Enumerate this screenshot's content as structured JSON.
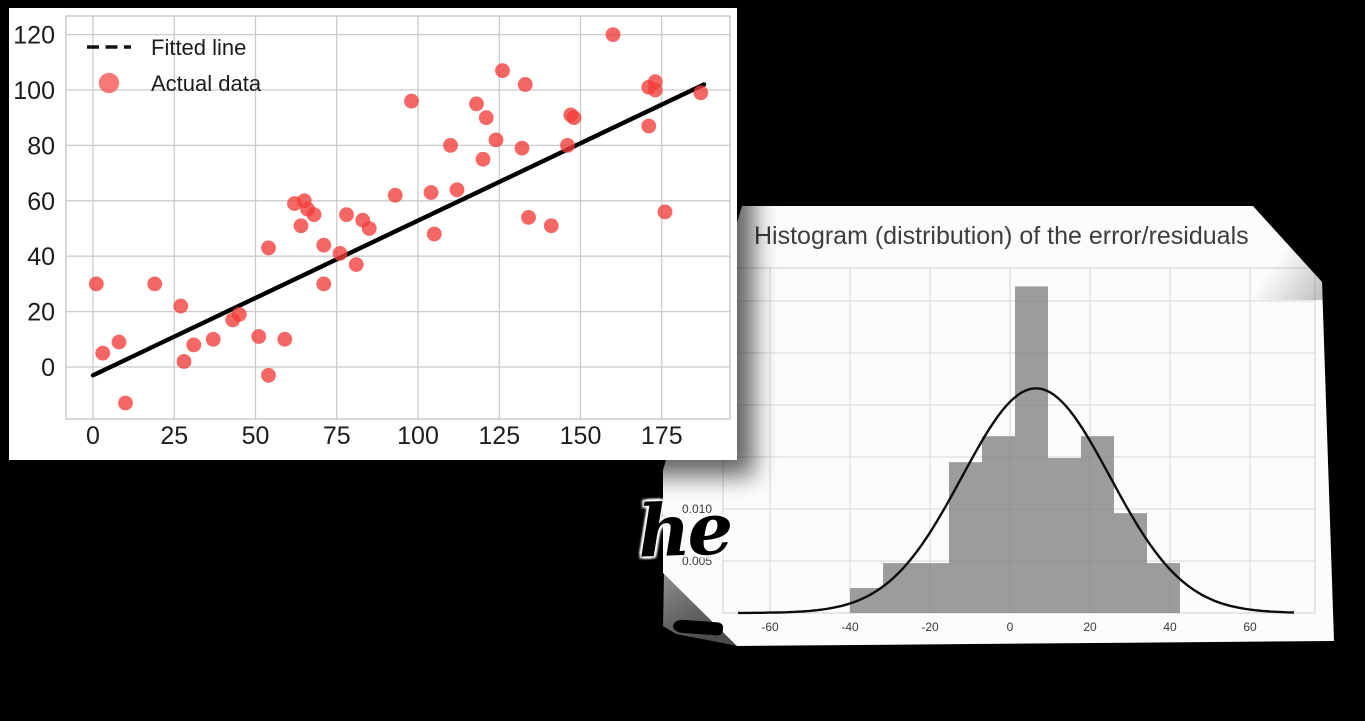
{
  "window": {
    "background_color": "#000000"
  },
  "scatter_panel": {
    "panel_color": "#ffffff",
    "legend": [
      {
        "label": "Fitted line",
        "marker": "dashed-line",
        "color": "#000000"
      },
      {
        "label": "Actual data",
        "marker": "dot",
        "color": "#f4625f"
      }
    ]
  },
  "note_panel": {
    "title": "Histogram (distribution) of the error/residuals",
    "paper_color": "#fcfcfc"
  },
  "overlay_text": {
    "script_fragment": "he"
  },
  "chart_data": [
    {
      "type": "scatter",
      "title": "",
      "legend": [
        "Fitted line",
        "Actual data"
      ],
      "x_ticks": [
        0,
        25,
        50,
        75,
        100,
        125,
        150,
        175
      ],
      "y_ticks": [
        0,
        20,
        40,
        60,
        80,
        100,
        120
      ],
      "xlim": [
        -8,
        196
      ],
      "ylim": [
        -19,
        127
      ],
      "grid": true,
      "point_color": "#f23c38",
      "line_color": "#000000",
      "points": [
        [
          1,
          30
        ],
        [
          3,
          5
        ],
        [
          8,
          9
        ],
        [
          10,
          -13
        ],
        [
          19,
          30
        ],
        [
          27,
          22
        ],
        [
          28,
          2
        ],
        [
          31,
          8
        ],
        [
          37,
          10
        ],
        [
          43,
          17
        ],
        [
          45,
          19
        ],
        [
          51,
          11
        ],
        [
          54,
          -3
        ],
        [
          54,
          43
        ],
        [
          59,
          10
        ],
        [
          62,
          59
        ],
        [
          64,
          51
        ],
        [
          65,
          60
        ],
        [
          66,
          57
        ],
        [
          68,
          55
        ],
        [
          71,
          44
        ],
        [
          71,
          30
        ],
        [
          76,
          41
        ],
        [
          78,
          55
        ],
        [
          81,
          37
        ],
        [
          83,
          53
        ],
        [
          85,
          50
        ],
        [
          93,
          62
        ],
        [
          98,
          96
        ],
        [
          104,
          63
        ],
        [
          105,
          48
        ],
        [
          110,
          80
        ],
        [
          112,
          64
        ],
        [
          118,
          95
        ],
        [
          120,
          75
        ],
        [
          121,
          90
        ],
        [
          124,
          82
        ],
        [
          126,
          107
        ],
        [
          132,
          79
        ],
        [
          133,
          102
        ],
        [
          134,
          54
        ],
        [
          141,
          51
        ],
        [
          146,
          80
        ],
        [
          147,
          91
        ],
        [
          148,
          90
        ],
        [
          160,
          120
        ],
        [
          171,
          87
        ],
        [
          171,
          101
        ],
        [
          173,
          103
        ],
        [
          173,
          100
        ],
        [
          176,
          56
        ],
        [
          187,
          99
        ]
      ],
      "fitted_line": {
        "x0": 0,
        "y0": -3,
        "x1": 188,
        "y1": 102
      }
    },
    {
      "type": "histogram",
      "title": "Histogram (distribution) of the error/residuals",
      "x_ticks": [
        -60,
        -40,
        -20,
        0,
        20,
        40,
        60
      ],
      "y_ticks_visible": [
        {
          "label": "0.005",
          "value": 0.005
        },
        {
          "label": "0.010",
          "value": 0.01
        }
      ],
      "xlim": [
        -71.75,
        76.25
      ],
      "ylim": [
        0,
        0.0332
      ],
      "grid": true,
      "bar_color": "rgba(128,128,128,0.78)",
      "curve_color": "#0d0d0d",
      "bin_edges": [
        -40,
        -31.75,
        -23.5,
        -15.25,
        -7,
        1.25,
        9.5,
        17.75,
        26,
        34.25,
        42.5
      ],
      "densities": [
        0.0024,
        0.0048,
        0.0048,
        0.0145,
        0.017,
        0.0314,
        0.0149,
        0.017,
        0.0096,
        0.0048
      ],
      "curve": {
        "mean": 6.5,
        "sigma": 18.5,
        "peak": 0.0216,
        "x_range": [
          -68,
          71
        ]
      }
    }
  ]
}
